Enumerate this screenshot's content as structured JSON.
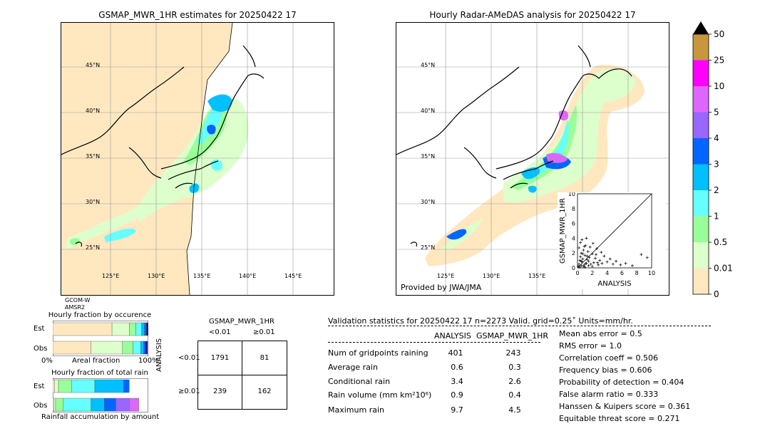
{
  "left_map": {
    "title": "GSMAP_MWR_1HR estimates for 20250422 17",
    "lat_labels": [
      "45°N",
      "40°N",
      "35°N",
      "30°N",
      "25°N"
    ],
    "lon_labels": [
      "125°E",
      "130°E",
      "135°E",
      "140°E",
      "145°E"
    ],
    "satellite": "GCOM-W",
    "sensor": "AMSR2"
  },
  "right_map": {
    "title": "Hourly Radar-AMeDAS analysis for 20250422 17",
    "lat_labels": [
      "45°N",
      "40°N",
      "35°N",
      "30°N",
      "25°N"
    ],
    "lon_labels": [
      "125°E",
      "130°E",
      "135°E"
    ],
    "provider": "Provided by JWA/JMA"
  },
  "colorbar": {
    "labels": [
      "50",
      "25",
      "10",
      "5",
      "4",
      "3",
      "2",
      "1",
      "0.5",
      "0.01",
      "0"
    ],
    "colors": [
      "#c8963c",
      "#ff00ff",
      "#dd66ff",
      "#9966ff",
      "#0066ff",
      "#00c0ff",
      "#66ffff",
      "#99ff99",
      "#ddffcc",
      "#ffe8c0"
    ]
  },
  "scatter": {
    "ylabel": "GSMAP_MWR_1HR",
    "xlabel": "ANALYSIS",
    "ticks": [
      "0",
      "2",
      "4",
      "6",
      "8",
      "10"
    ],
    "xlim": [
      0,
      10
    ],
    "ylim": [
      0,
      10
    ]
  },
  "fraction_occ": {
    "title": "Hourly fraction by occurence",
    "row_labels": [
      "Est",
      "Obs"
    ],
    "axis_left": "0%",
    "axis_mid": "Areal fraction",
    "axis_right": "100%"
  },
  "fraction_rain": {
    "title": "Hourly fraction of total rain",
    "row_labels": [
      "Est",
      "Obs"
    ],
    "footer": "Rainfall accumulation by amount"
  },
  "contingency": {
    "title": "GSMAP_MWR_1HR",
    "col_labels": [
      "<0.01",
      "≥0.01"
    ],
    "row_axis": "ANALYSIS",
    "row_labels": [
      "<0.01",
      "≥0.01"
    ],
    "cells": [
      [
        "1791",
        "81"
      ],
      [
        "239",
        "162"
      ]
    ]
  },
  "validation": {
    "header": "Validation statistics for 20250422 17  n=2273 Valid. grid=0.25˚ Units=mm/hr.",
    "col_analysis": "ANALYSIS",
    "col_gsmap": "GSMAP_MWR_1HR",
    "rows": [
      {
        "label": "Num of gridpoints raining",
        "analysis": "401",
        "gsmap": "243"
      },
      {
        "label": "Average rain",
        "analysis": "0.6",
        "gsmap": "0.3"
      },
      {
        "label": "Conditional rain",
        "analysis": "3.4",
        "gsmap": "2.6"
      },
      {
        "label": "Rain volume (mm km²10⁶)",
        "analysis": "0.9",
        "gsmap": "0.4"
      },
      {
        "label": "Maximum rain",
        "analysis": "9.7",
        "gsmap": "4.5"
      }
    ],
    "scores": [
      "Mean abs error =    0.5",
      "RMS error =    1.0",
      "Correlation coeff =  0.506",
      "Frequency bias =  0.606",
      "Probability of detection =  0.404",
      "False alarm ratio =  0.333",
      "Hanssen & Kuipers score =  0.361",
      "Equitable threat score =  0.271"
    ]
  },
  "chart_data": [
    {
      "type": "scatter",
      "title": "",
      "xlabel": "ANALYSIS",
      "ylabel": "GSMAP_MWR_1HR",
      "xlim": [
        0,
        10
      ],
      "ylim": [
        0,
        10
      ],
      "x": [
        0.1,
        0.2,
        0.3,
        0.3,
        0.4,
        0.5,
        0.5,
        0.6,
        0.7,
        0.8,
        0.9,
        1.0,
        1.1,
        1.2,
        1.3,
        1.4,
        1.5,
        1.6,
        1.8,
        2.0,
        2.2,
        2.4,
        2.6,
        2.8,
        3.0,
        3.3,
        3.6,
        4.0,
        4.4,
        4.8,
        5.2,
        5.8,
        6.5,
        7.4,
        8.6,
        9.4,
        0.4,
        0.8,
        1.2,
        1.7,
        2.1,
        2.5,
        0.2,
        0.6,
        1.0,
        1.5,
        0.9,
        1.3,
        2.0,
        3.2,
        0.5,
        1.1,
        0.7,
        2.7
      ],
      "y": [
        0.2,
        0.5,
        1.0,
        0.1,
        1.5,
        0.3,
        2.0,
        0.8,
        1.2,
        2.4,
        0.4,
        1.7,
        3.0,
        0.6,
        1.1,
        2.2,
        0.9,
        1.4,
        0.5,
        1.9,
        0.7,
        1.3,
        2.6,
        0.4,
        1.0,
        0.6,
        1.6,
        0.8,
        1.2,
        0.5,
        0.9,
        0.4,
        0.6,
        0.3,
        1.8,
        1.4,
        3.4,
        0.2,
        4.0,
        2.8,
        3.3,
        1.8,
        2.7,
        3.8,
        0.1,
        0.3,
        2.9,
        1.6,
        0.2,
        2.1,
        0.9,
        0.6,
        1.9,
        0.7
      ]
    },
    {
      "type": "bar",
      "title": "Hourly fraction by occurence",
      "categories": [
        "Est",
        "Obs"
      ],
      "series": [
        {
          "values": [
            0.62,
            0.4
          ]
        },
        {
          "values": [
            0.18,
            0.33
          ]
        },
        {
          "values": [
            0.07,
            0.11
          ]
        },
        {
          "values": [
            0.06,
            0.08
          ]
        },
        {
          "values": [
            0.03,
            0.03
          ]
        },
        {
          "values": [
            0.02,
            0.02
          ]
        },
        {
          "values": [
            0.02,
            0.02
          ]
        },
        {
          "values": [
            0.0,
            0.01
          ]
        }
      ],
      "colors": [
        "#ffe8c0",
        "#ddffcc",
        "#99ff99",
        "#66ffff",
        "#00c0ff",
        "#0066ff",
        "#1010aa",
        "#9966ff"
      ]
    },
    {
      "type": "bar",
      "title": "Hourly fraction of total rain",
      "categories": [
        "Est",
        "Obs"
      ],
      "series": [
        {
          "values": [
            0.02,
            0.01
          ]
        },
        {
          "values": [
            0.04,
            0.02
          ]
        },
        {
          "values": [
            0.14,
            0.08
          ]
        },
        {
          "values": [
            0.24,
            0.29
          ]
        },
        {
          "values": [
            0.3,
            0.14
          ]
        },
        {
          "values": [
            0.06,
            0.12
          ]
        },
        {
          "values": [
            0.0,
            0.14
          ]
        },
        {
          "values": [
            0.0,
            0.1
          ]
        }
      ],
      "colors": [
        "#ffe8c0",
        "#ddffcc",
        "#99ff99",
        "#66ffff",
        "#00c0ff",
        "#0066ff",
        "#9966ff",
        "#dd66ff"
      ]
    }
  ]
}
